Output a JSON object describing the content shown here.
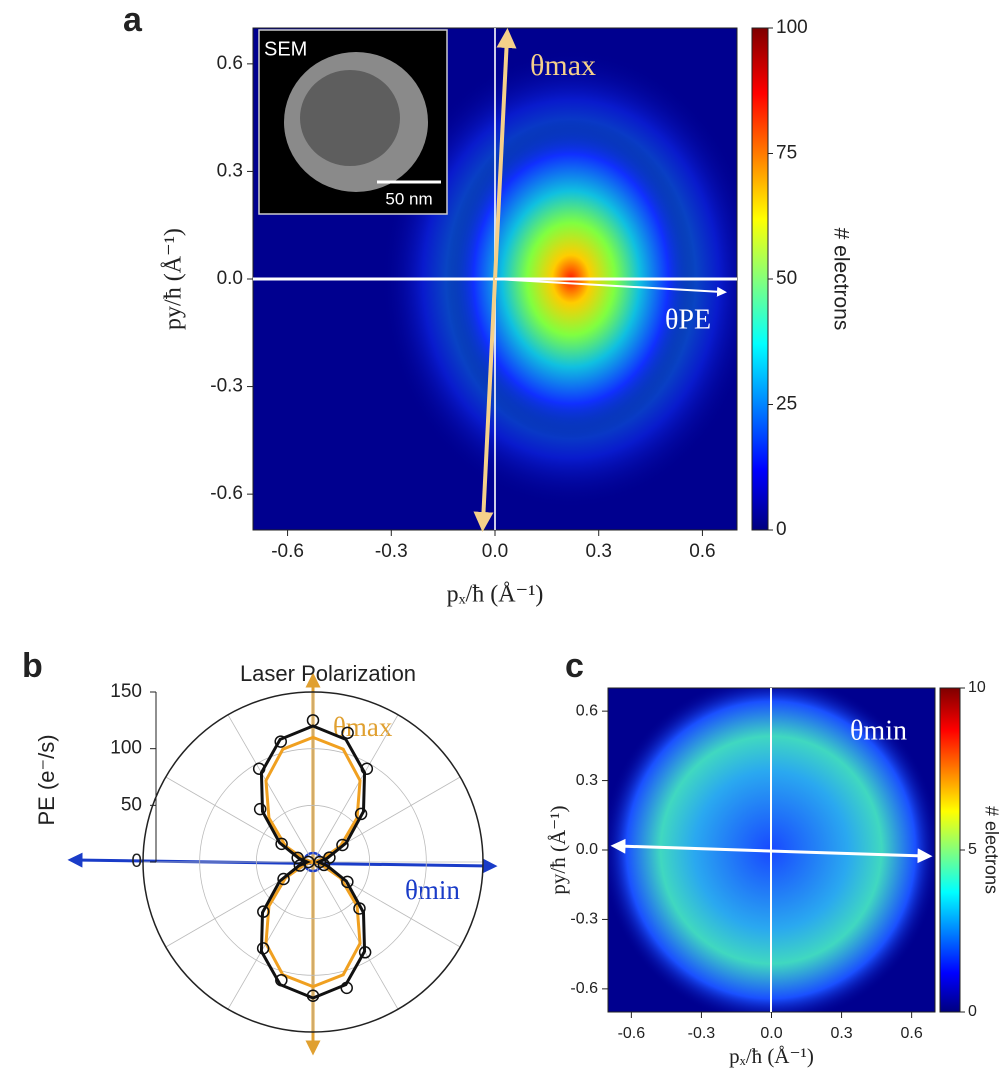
{
  "chart_data": [
    {
      "type": "heatmap",
      "panel_label": "a",
      "x_label": "pₓ/ħ (Å⁻¹)",
      "y_label": "py/ħ (Å⁻¹)",
      "xlim": [
        -0.7,
        0.7
      ],
      "ylim": [
        -0.7,
        0.7
      ],
      "xticks": [
        -0.6,
        -0.3,
        {
          "value": 0,
          "label": "0.0"
        },
        0.3,
        0.6
      ],
      "yticks": [
        -0.6,
        -0.3,
        {
          "value": 0,
          "label": "0.0"
        },
        0.3,
        0.6
      ],
      "colorbar": {
        "label": "# electrons",
        "lim": [
          0,
          100
        ],
        "ticks": [
          0,
          25,
          50,
          75,
          100
        ]
      },
      "annotations": [
        "θmax",
        "θPE"
      ],
      "inset": {
        "label": "SEM",
        "scale_bar": "50 nm"
      }
    },
    {
      "type": "polar",
      "panel_label": "b",
      "title": "Laser Polarization",
      "r_label": "PE (e⁻/s)",
      "rlim": [
        0,
        150
      ],
      "rticks": [
        0,
        50,
        100,
        150
      ],
      "theta": [
        0,
        15,
        30,
        45,
        60,
        75,
        90,
        105,
        120,
        135,
        150,
        165,
        180,
        195,
        210,
        225,
        240,
        255,
        270,
        285,
        300,
        315,
        330,
        345
      ],
      "series": [
        {
          "color": "#f0a020",
          "kind": "line",
          "values": [
            110,
            103,
            83,
            55,
            28,
            7,
            0,
            7,
            28,
            55,
            83,
            103,
            110,
            103,
            83,
            55,
            28,
            7,
            0,
            7,
            28,
            55,
            83,
            103
          ]
        },
        {
          "color": "#111111",
          "kind": "line",
          "values": [
            120,
            112,
            91,
            63,
            34,
            13,
            5,
            13,
            34,
            63,
            91,
            112,
            120,
            112,
            91,
            63,
            34,
            13,
            5,
            13,
            34,
            63,
            91,
            112
          ]
        },
        {
          "color": "#111111",
          "kind": "markers",
          "values": [
            125,
            118,
            95,
            60,
            30,
            15,
            6,
            10,
            35,
            58,
            92,
            115,
            118,
            108,
            88,
            62,
            30,
            12,
            4,
            14,
            32,
            66,
            95,
            110
          ]
        }
      ],
      "annotations": [
        "θmax",
        "θmin"
      ]
    },
    {
      "type": "heatmap",
      "panel_label": "c",
      "x_label": "pₓ/ħ (Å⁻¹)",
      "y_label": "py/ħ (Å⁻¹)",
      "xlim": [
        -0.7,
        0.7
      ],
      "ylim": [
        -0.7,
        0.7
      ],
      "xticks": [
        -0.6,
        -0.3,
        {
          "value": 0,
          "label": "0.0"
        },
        0.3,
        0.6
      ],
      "yticks": [
        -0.6,
        -0.3,
        {
          "value": 0,
          "label": "0.0"
        },
        0.3,
        0.6
      ],
      "colorbar": {
        "label": "# electrons",
        "lim": [
          0,
          10
        ],
        "ticks": [
          0,
          5,
          10
        ]
      },
      "annotations": [
        "θmin"
      ]
    }
  ]
}
